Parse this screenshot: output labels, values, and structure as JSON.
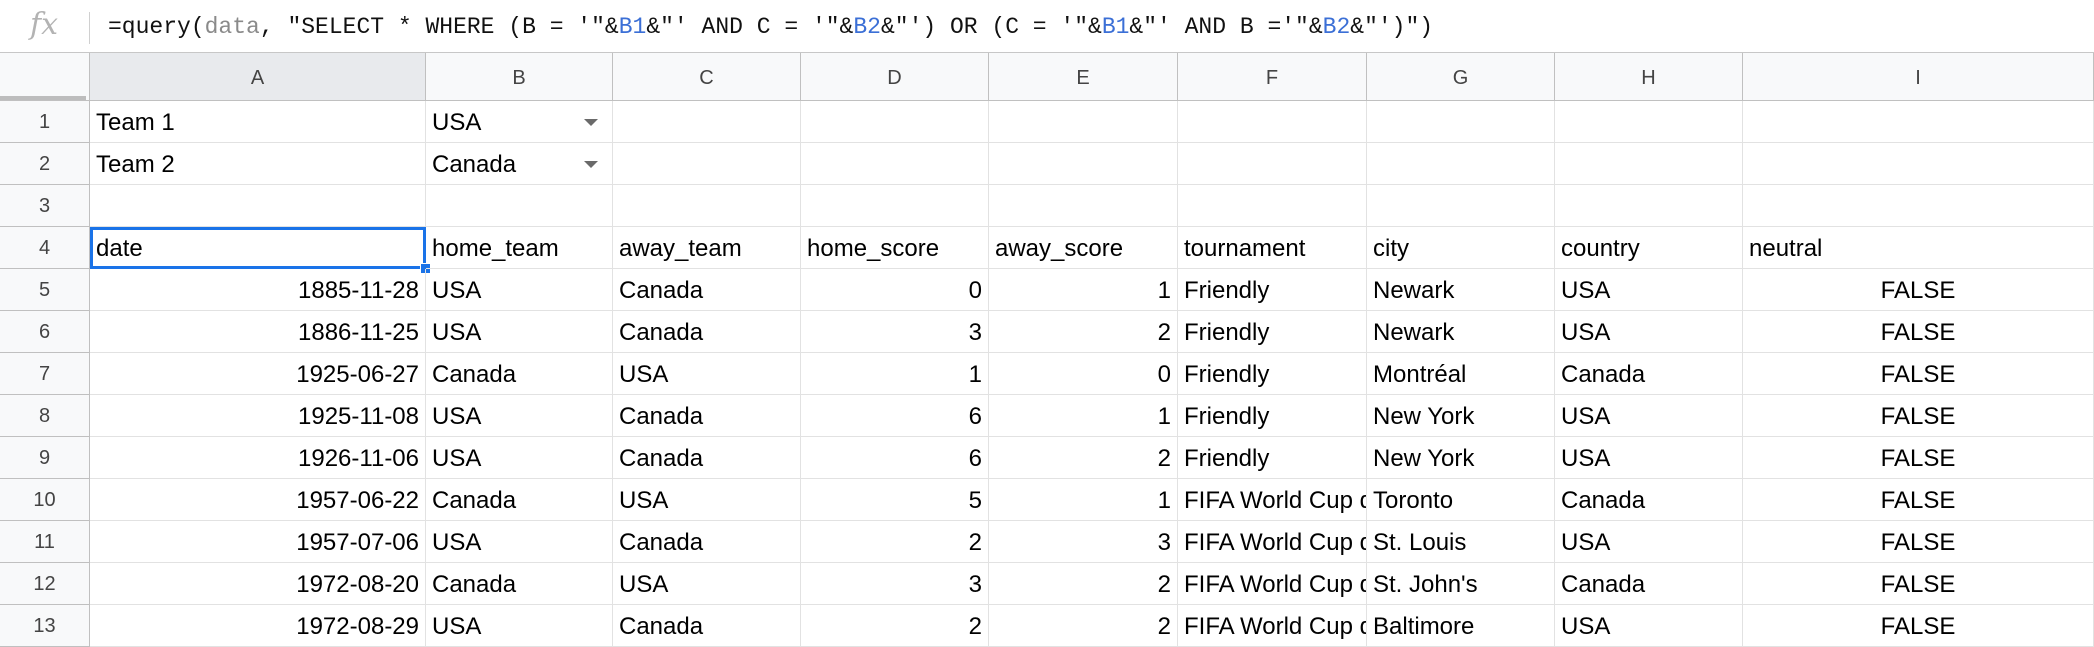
{
  "formula_bar": {
    "icon": "fx-icon",
    "parts": [
      {
        "text": "=query(",
        "kind": "plain"
      },
      {
        "text": "data",
        "kind": "named"
      },
      {
        "text": ", \"SELECT * WHERE (B = '\"&",
        "kind": "plain"
      },
      {
        "text": "B1",
        "kind": "ref"
      },
      {
        "text": "&\"' AND C = '\"&",
        "kind": "plain"
      },
      {
        "text": "B2",
        "kind": "ref"
      },
      {
        "text": "&\"') OR (C = '\"&",
        "kind": "plain"
      },
      {
        "text": "B1",
        "kind": "ref"
      },
      {
        "text": "&\"' AND B ='\"&",
        "kind": "plain"
      },
      {
        "text": "B2",
        "kind": "ref"
      },
      {
        "text": "&\"')\")",
        "kind": "plain"
      }
    ]
  },
  "columns": [
    "A",
    "B",
    "C",
    "D",
    "E",
    "F",
    "G",
    "H",
    "I"
  ],
  "active_column": "A",
  "rows": [
    {
      "num": "1",
      "cells": [
        "Team 1",
        "USA",
        "",
        "",
        "",
        "",
        "",
        "",
        ""
      ]
    },
    {
      "num": "2",
      "cells": [
        "Team 2",
        "Canada",
        "",
        "",
        "",
        "",
        "",
        "",
        ""
      ]
    },
    {
      "num": "3",
      "cells": [
        "",
        "",
        "",
        "",
        "",
        "",
        "",
        "",
        ""
      ]
    },
    {
      "num": "4",
      "cells": [
        "date",
        "home_team",
        "away_team",
        "home_score",
        "away_score",
        "tournament",
        "city",
        "country",
        "neutral"
      ]
    },
    {
      "num": "5",
      "cells": [
        "1885-11-28",
        "USA",
        "Canada",
        "0",
        "1",
        "Friendly",
        "Newark",
        "USA",
        "FALSE"
      ]
    },
    {
      "num": "6",
      "cells": [
        "1886-11-25",
        "USA",
        "Canada",
        "3",
        "2",
        "Friendly",
        "Newark",
        "USA",
        "FALSE"
      ]
    },
    {
      "num": "7",
      "cells": [
        "1925-06-27",
        "Canada",
        "USA",
        "1",
        "0",
        "Friendly",
        "Montréal",
        "Canada",
        "FALSE"
      ]
    },
    {
      "num": "8",
      "cells": [
        "1925-11-08",
        "USA",
        "Canada",
        "6",
        "1",
        "Friendly",
        "New York",
        "USA",
        "FALSE"
      ]
    },
    {
      "num": "9",
      "cells": [
        "1926-11-06",
        "USA",
        "Canada",
        "6",
        "2",
        "Friendly",
        "New York",
        "USA",
        "FALSE"
      ]
    },
    {
      "num": "10",
      "cells": [
        "1957-06-22",
        "Canada",
        "USA",
        "5",
        "1",
        "FIFA World Cup q",
        "Toronto",
        "Canada",
        "FALSE"
      ]
    },
    {
      "num": "11",
      "cells": [
        "1957-07-06",
        "USA",
        "Canada",
        "2",
        "3",
        "FIFA World Cup q",
        "St. Louis",
        "USA",
        "FALSE"
      ]
    },
    {
      "num": "12",
      "cells": [
        "1972-08-20",
        "Canada",
        "USA",
        "3",
        "2",
        "FIFA World Cup q",
        "St. John's",
        "Canada",
        "FALSE"
      ]
    },
    {
      "num": "13",
      "cells": [
        "1972-08-29",
        "USA",
        "Canada",
        "2",
        "2",
        "FIFA World Cup q",
        "Baltimore",
        "USA",
        "FALSE"
      ]
    }
  ],
  "selected_cell": "A4",
  "dropdown_cells": [
    "B1",
    "B2"
  ]
}
